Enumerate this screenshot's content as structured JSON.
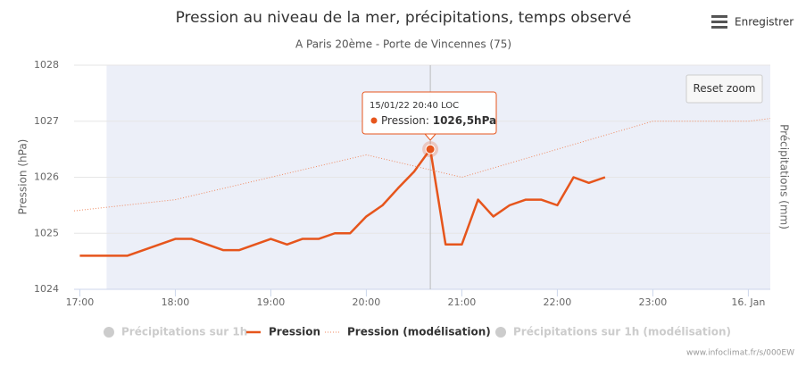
{
  "chart_data": {
    "type": "line",
    "title": "Pression au niveau de la mer, précipitations, temps observé",
    "subtitle": "A Paris 20ème - Porte de Vincennes (75)",
    "ylabel": "Pression (hPa)",
    "y2label": "Précipitations (mm)",
    "xlim": [
      16.94,
      24.23
    ],
    "xticks": [
      {
        "value": 17,
        "label": "17:00"
      },
      {
        "value": 18,
        "label": "18:00"
      },
      {
        "value": 19,
        "label": "19:00"
      },
      {
        "value": 20,
        "label": "20:00"
      },
      {
        "value": 21,
        "label": "21:00"
      },
      {
        "value": 22,
        "label": "22:00"
      },
      {
        "value": 23,
        "label": "23:00"
      },
      {
        "value": 24,
        "label": "16. Jan"
      }
    ],
    "ylim": [
      1024,
      1028
    ],
    "yticks": [
      1024,
      1025,
      1026,
      1027,
      1028
    ],
    "grid": true,
    "shaded_range": [
      17.28,
      24.23
    ],
    "series": [
      {
        "name": "Précipitations sur 1h",
        "color": "#cccccc",
        "visible": false,
        "marker": "circle"
      },
      {
        "name": "Pression",
        "color": "#e6551c",
        "visible": true,
        "style": "solid",
        "x": [
          17,
          17.5,
          18,
          18.17,
          18.5,
          18.67,
          19,
          19.17,
          19.33,
          19.5,
          19.67,
          19.83,
          20,
          20.17,
          20.33,
          20.5,
          20.67,
          20.83,
          21,
          21.17,
          21.33,
          21.5,
          21.67,
          21.83,
          22,
          22.17,
          22.33,
          22.5
        ],
        "values": [
          1024.6,
          1024.6,
          1024.9,
          1024.9,
          1024.7,
          1024.7,
          1024.9,
          1024.8,
          1024.9,
          1024.9,
          1025.0,
          1025.0,
          1025.3,
          1025.5,
          1025.8,
          1026.1,
          1026.5,
          1024.8,
          1024.8,
          1025.6,
          1025.3,
          1025.5,
          1025.6,
          1025.6,
          1025.5,
          1026.0,
          1025.9,
          1026.0
        ]
      },
      {
        "name": "Pression (modélisation)",
        "color": "#ef8a62",
        "visible": true,
        "style": "dotted",
        "x": [
          16.94,
          18,
          20,
          21,
          23,
          24,
          24.23
        ],
        "values": [
          1025.4,
          1025.6,
          1026.4,
          1026.0,
          1027.0,
          1027.0,
          1027.05
        ]
      },
      {
        "name": "Précipitations sur 1h (modélisation)",
        "color": "#cccccc",
        "visible": false,
        "marker": "circle"
      }
    ],
    "tooltip": {
      "series": 1,
      "index": 16,
      "date": "15/01/22 20:40 LOC",
      "label": "Pression: ",
      "value_label": "1026,5hPa"
    },
    "reset_button": "Reset zoom",
    "menu": "Enregistrer",
    "credits": "www.infoclimat.fr/s/000EW"
  }
}
